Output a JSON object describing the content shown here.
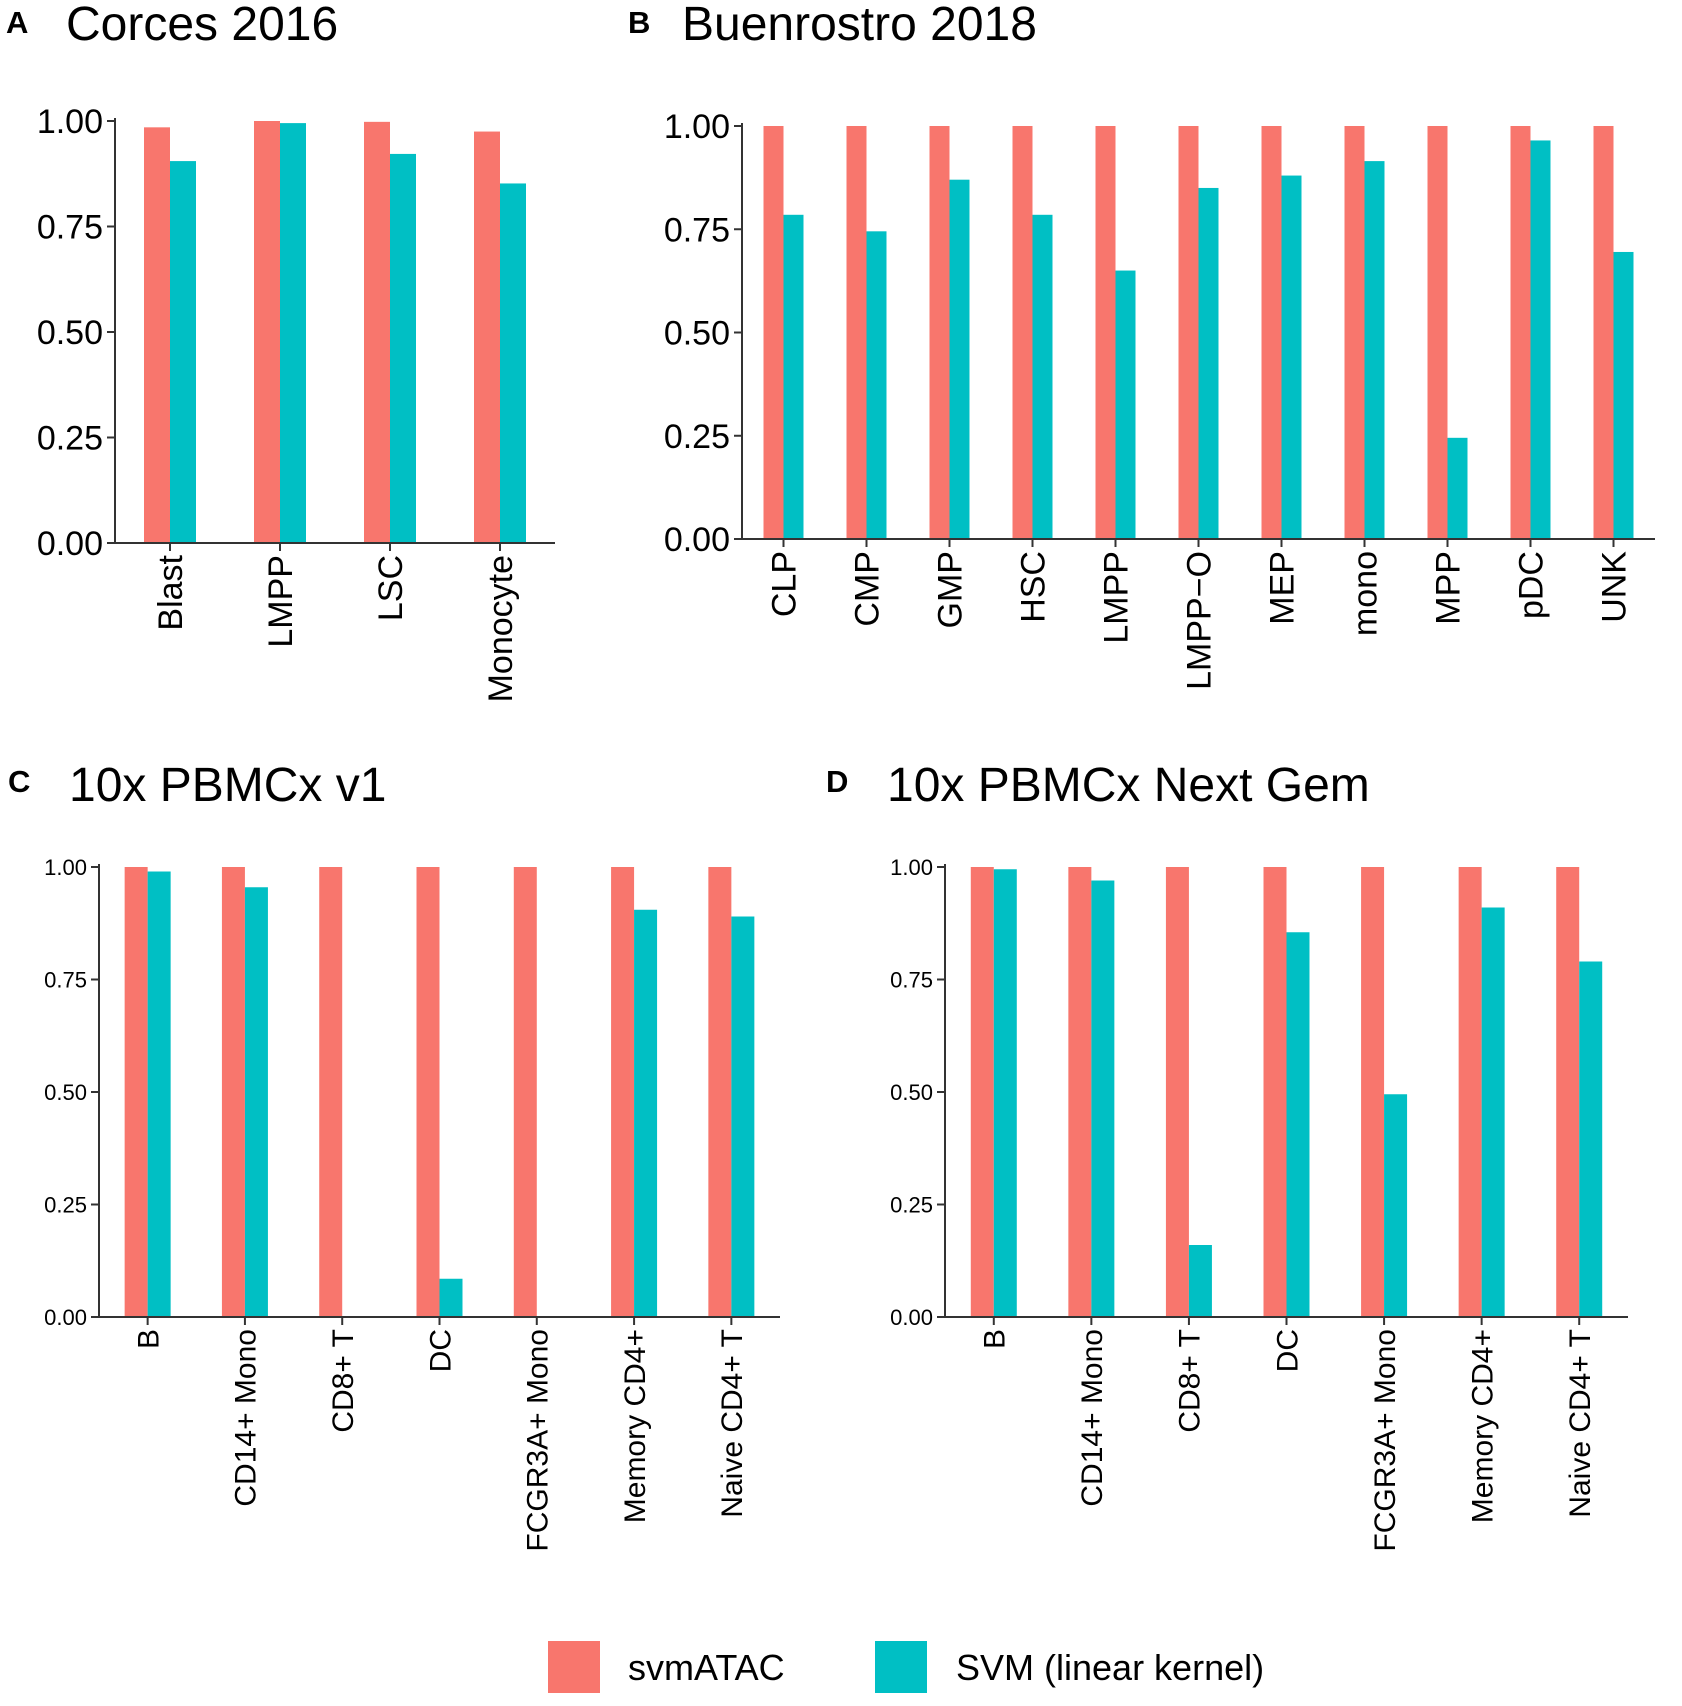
{
  "colors": {
    "svmATAC": "#F8766D",
    "SVM": "#00BFC4"
  },
  "legend": {
    "items": [
      {
        "label": "svmATAC",
        "color": "#F8766D"
      },
      {
        "label": "SVM (linear kernel)",
        "color": "#00BFC4"
      }
    ]
  },
  "chart_data": [
    {
      "panel": "A",
      "title": "Corces 2016",
      "type": "bar",
      "ylim": [
        0,
        1
      ],
      "yticks": [
        "0.00",
        "0.25",
        "0.50",
        "0.75",
        "1.00"
      ],
      "categories": [
        "Blast",
        "LMPP",
        "LSC",
        "Monocyte"
      ],
      "series": [
        {
          "name": "svmATAC",
          "values": [
            0.985,
            1.0,
            0.998,
            0.975
          ]
        },
        {
          "name": "SVM (linear kernel)",
          "values": [
            0.905,
            0.995,
            0.922,
            0.852
          ]
        }
      ]
    },
    {
      "panel": "B",
      "title": "Buenrostro 2018",
      "type": "bar",
      "ylim": [
        0,
        1
      ],
      "yticks": [
        "0.00",
        "0.25",
        "0.50",
        "0.75",
        "1.00"
      ],
      "categories": [
        "CLP",
        "CMP",
        "GMP",
        "HSC",
        "LMPP",
        "LMPP−O",
        "MEP",
        "mono",
        "MPP",
        "pDC",
        "UNK"
      ],
      "series": [
        {
          "name": "svmATAC",
          "values": [
            1.0,
            1.0,
            1.0,
            1.0,
            1.0,
            1.0,
            1.0,
            1.0,
            1.0,
            1.0,
            1.0
          ]
        },
        {
          "name": "SVM (linear kernel)",
          "values": [
            0.785,
            0.745,
            0.87,
            0.785,
            0.65,
            0.85,
            0.88,
            0.915,
            0.245,
            0.965,
            0.695
          ]
        }
      ]
    },
    {
      "panel": "C",
      "title": "10x PBMCx v1",
      "type": "bar",
      "ylim": [
        0,
        1
      ],
      "yticks": [
        "0.00",
        "0.25",
        "0.50",
        "0.75",
        "1.00"
      ],
      "categories": [
        "B",
        "CD14+ Mono",
        "CD8+ T",
        "DC",
        "FCGR3A+ Mono",
        "Memory CD4+",
        "Naive CD4+ T"
      ],
      "series": [
        {
          "name": "svmATAC",
          "values": [
            1.0,
            1.0,
            1.0,
            1.0,
            1.0,
            1.0,
            1.0
          ]
        },
        {
          "name": "SVM (linear kernel)",
          "values": [
            0.99,
            0.955,
            0.0,
            0.085,
            0.0,
            0.905,
            0.89
          ]
        }
      ]
    },
    {
      "panel": "D",
      "title": "10x PBMCx Next Gem",
      "type": "bar",
      "ylim": [
        0,
        1
      ],
      "yticks": [
        "0.00",
        "0.25",
        "0.50",
        "0.75",
        "1.00"
      ],
      "categories": [
        "B",
        "CD14+ Mono",
        "CD8+ T",
        "DC",
        "FCGR3A+ Mono",
        "Memory CD4+",
        "Naive CD4+ T"
      ],
      "series": [
        {
          "name": "svmATAC",
          "values": [
            1.0,
            1.0,
            1.0,
            1.0,
            1.0,
            1.0,
            1.0
          ]
        },
        {
          "name": "SVM (linear kernel)",
          "values": [
            0.995,
            0.97,
            0.16,
            0.855,
            0.495,
            0.91,
            0.79
          ]
        }
      ]
    }
  ]
}
